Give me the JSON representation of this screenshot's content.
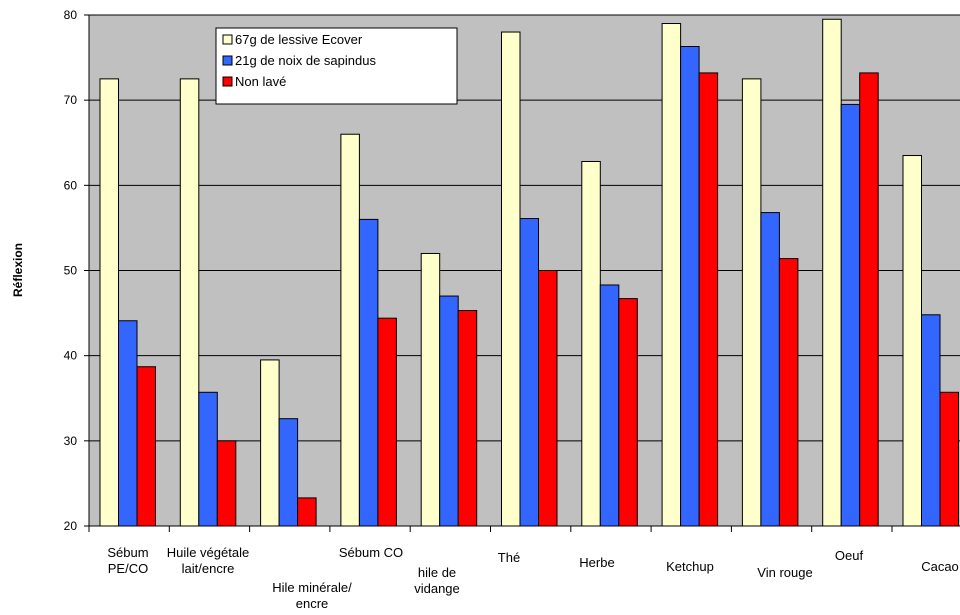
{
  "chart_data": {
    "type": "bar",
    "title": "",
    "xlabel": "",
    "ylabel": "Réflexion",
    "ylim": [
      20,
      80
    ],
    "yticks": [
      20,
      30,
      40,
      50,
      60,
      70,
      80
    ],
    "grid": true,
    "legend_position": "top-left",
    "categories": [
      [
        "Sébum",
        "PE/CO"
      ],
      [
        "Huile végétale",
        "lait/encre"
      ],
      [
        "Hile minérale/",
        "encre"
      ],
      [
        "Sébum CO"
      ],
      [
        "hile de",
        "vidange"
      ],
      [
        "Thé"
      ],
      [
        "Herbe"
      ],
      [
        "Ketchup"
      ],
      [
        "Vin rouge"
      ],
      [
        "Oeuf"
      ],
      [
        "Cacao"
      ]
    ],
    "series": [
      {
        "name": "67g de lessive Ecover",
        "color": "#ffffcc",
        "values": [
          72.5,
          72.5,
          39.5,
          66,
          52,
          78,
          62.8,
          79,
          72.5,
          79.5,
          63.5
        ]
      },
      {
        "name": "21g de noix de sapindus",
        "color": "#3366ff",
        "values": [
          44.1,
          35.7,
          32.6,
          56,
          47,
          56.1,
          48.3,
          76.3,
          56.8,
          69.5,
          44.8
        ]
      },
      {
        "name": "Non lavé",
        "color": "#ff0000",
        "values": [
          38.7,
          30,
          23.3,
          44.4,
          45.3,
          50,
          46.7,
          73.2,
          51.4,
          73.2,
          35.7
        ]
      }
    ]
  }
}
